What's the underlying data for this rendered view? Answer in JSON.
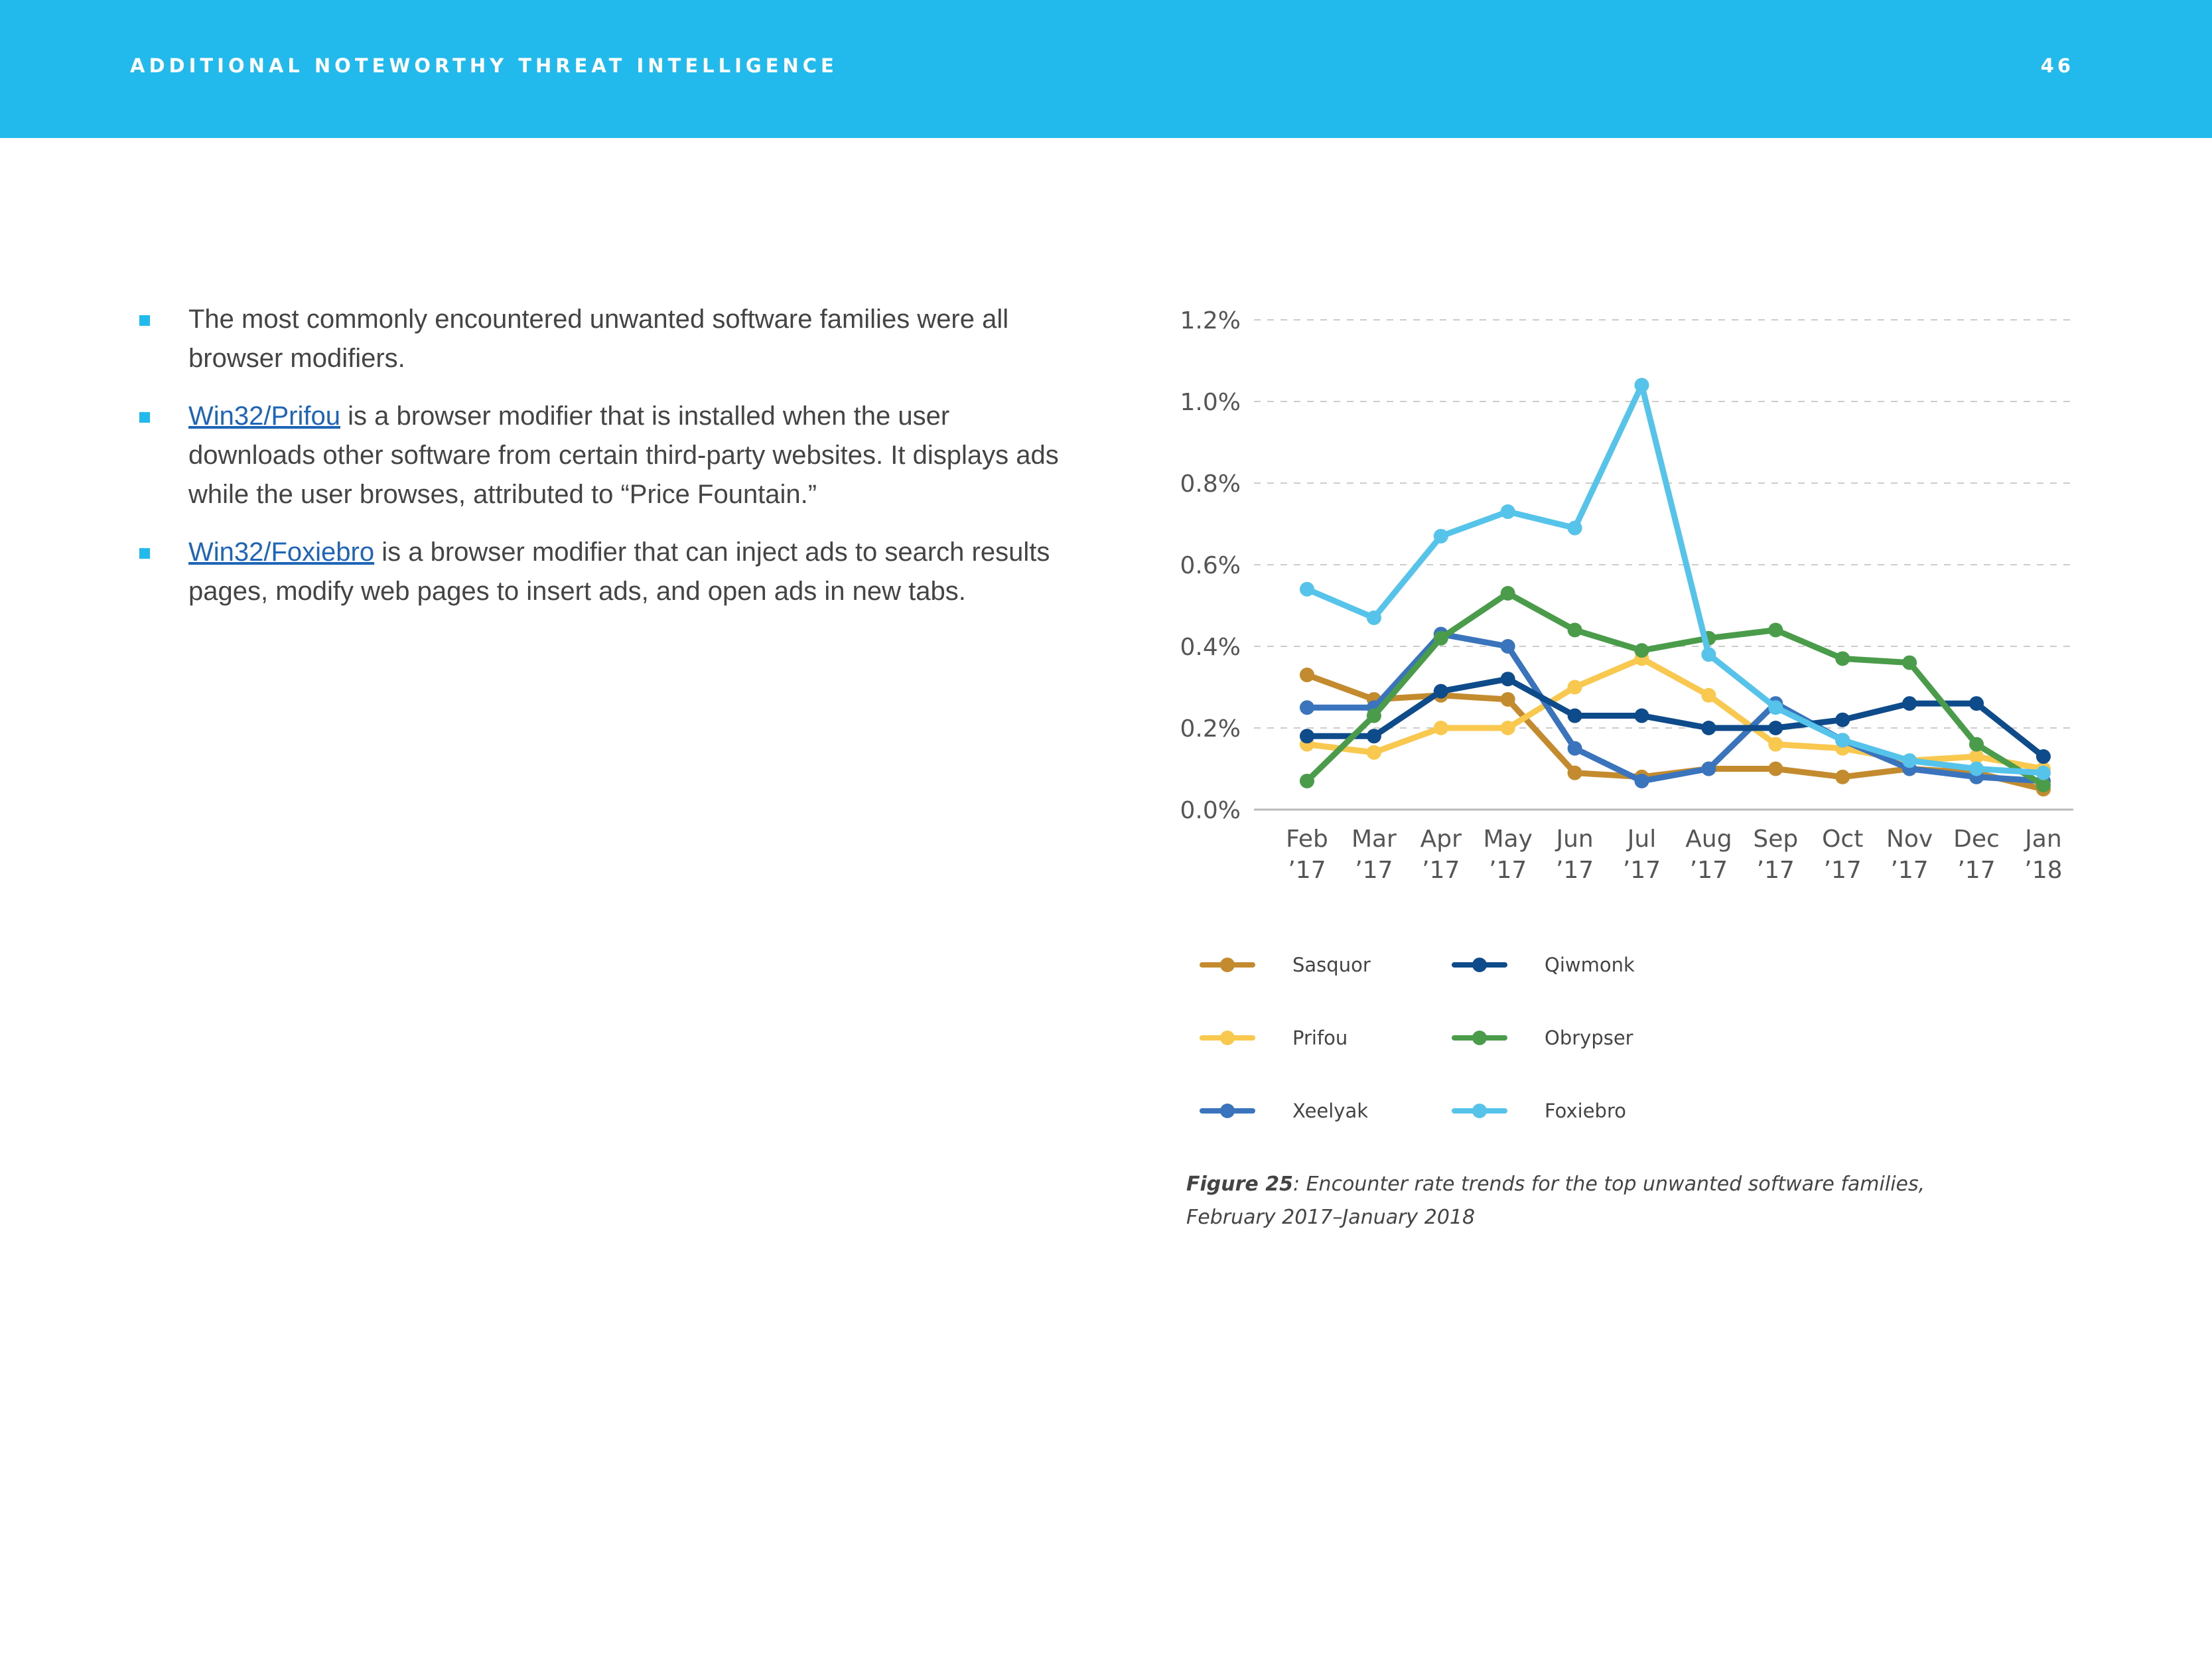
{
  "header": {
    "title": "ADDITIONAL NOTEWORTHY THREAT INTELLIGENCE",
    "page_number": "46",
    "color": "#22b9ec"
  },
  "bullets": [
    {
      "link": "",
      "text": "The most commonly encountered unwanted software families were all browser modifiers."
    },
    {
      "link": "Win32/Prifou",
      "text": " is a browser modifier that is installed when the user downloads other software from certain third-party websites. It displays ads while the user browses, attributed to “Price Fountain.”"
    },
    {
      "link": "Win32/Foxiebro",
      "text": " is a browser modifier that can inject ads to search results pages, modify web pages to insert ads, and open ads in new tabs."
    }
  ],
  "chart_data": {
    "type": "line",
    "categories": [
      [
        "Feb",
        "’17"
      ],
      [
        "Mar",
        "’17"
      ],
      [
        "Apr",
        "’17"
      ],
      [
        "May",
        "’17"
      ],
      [
        "Jun",
        "’17"
      ],
      [
        "Jul",
        "’17"
      ],
      [
        "Aug",
        "’17"
      ],
      [
        "Sep",
        "’17"
      ],
      [
        "Oct",
        "’17"
      ],
      [
        "Nov",
        "’17"
      ],
      [
        "Dec",
        "’17"
      ],
      [
        "Jan",
        "’18"
      ]
    ],
    "y_ticks": [
      "0.0%",
      "0.2%",
      "0.4%",
      "0.6%",
      "0.8%",
      "1.0%",
      "1.2%"
    ],
    "ylim": [
      0,
      1.2
    ],
    "grid": "horizontal dashed",
    "legend_position": "bottom",
    "series": [
      {
        "name": "Sasquor",
        "color": "#c48a2e",
        "values": [
          0.33,
          0.27,
          0.28,
          0.27,
          0.09,
          0.08,
          0.1,
          0.1,
          0.08,
          0.1,
          0.09,
          0.05
        ]
      },
      {
        "name": "Prifou",
        "color": "#f8c84f",
        "values": [
          0.16,
          0.14,
          0.2,
          0.2,
          0.3,
          0.37,
          0.28,
          0.16,
          0.15,
          0.12,
          0.13,
          0.1
        ]
      },
      {
        "name": "Xeelyak",
        "color": "#3a74bc",
        "values": [
          0.25,
          0.25,
          0.43,
          0.4,
          0.15,
          0.07,
          0.1,
          0.26,
          0.17,
          0.1,
          0.08,
          0.07
        ]
      },
      {
        "name": "Qiwmonk",
        "color": "#0d4b8b",
        "values": [
          0.18,
          0.18,
          0.29,
          0.32,
          0.23,
          0.23,
          0.2,
          0.2,
          0.22,
          0.26,
          0.26,
          0.13
        ]
      },
      {
        "name": "Obrypser",
        "color": "#4a9b4a",
        "values": [
          0.07,
          0.23,
          0.42,
          0.53,
          0.44,
          0.39,
          0.42,
          0.44,
          0.37,
          0.36,
          0.16,
          0.06
        ]
      },
      {
        "name": "Foxiebro",
        "color": "#56c4ea",
        "values": [
          0.54,
          0.47,
          0.67,
          0.73,
          0.69,
          1.04,
          0.38,
          0.25,
          0.17,
          0.12,
          0.1,
          0.09
        ]
      }
    ]
  },
  "caption": {
    "label": "Figure 25",
    "text": ": Encounter rate trends for the top unwanted software families, February 2017–January 2018"
  }
}
